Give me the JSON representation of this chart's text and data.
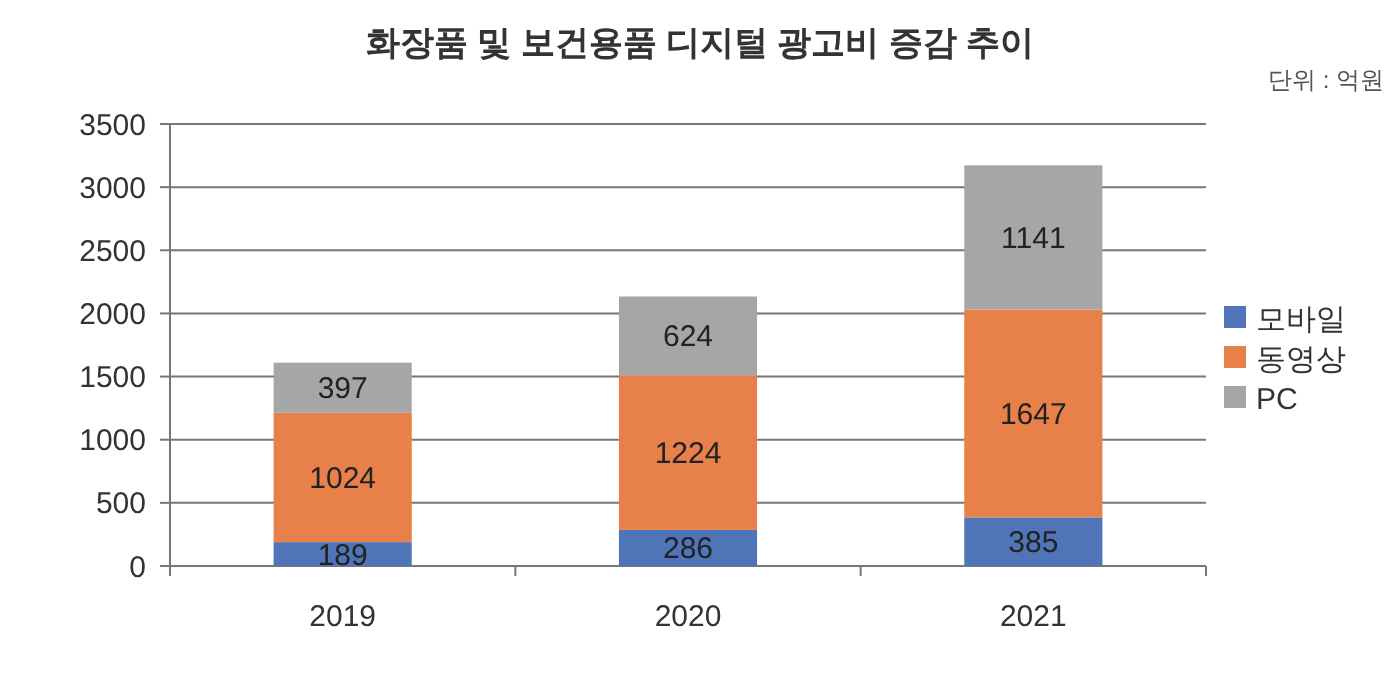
{
  "chart_data": {
    "type": "bar",
    "title": "화장품 및 보건용품 디지털 광고비 증감 추이",
    "annotations": [
      "단위 : 억원"
    ],
    "categories": [
      "2019",
      "2020",
      "2021"
    ],
    "stacked": true,
    "series": [
      {
        "name": "모바일",
        "color": "#4f75b8",
        "values": [
          189,
          286,
          385
        ]
      },
      {
        "name": "동영상",
        "color": "#e8804a",
        "values": [
          1024,
          1224,
          1647
        ]
      },
      {
        "name": "PC",
        "color": "#a5a7a6",
        "values": [
          397,
          624,
          1141
        ]
      }
    ],
    "ylim": [
      0,
      3500
    ],
    "yticks": [
      0,
      500,
      1000,
      1500,
      2000,
      2500,
      3000,
      3500
    ],
    "grid": "y",
    "legend": "right",
    "data_labels": true
  }
}
